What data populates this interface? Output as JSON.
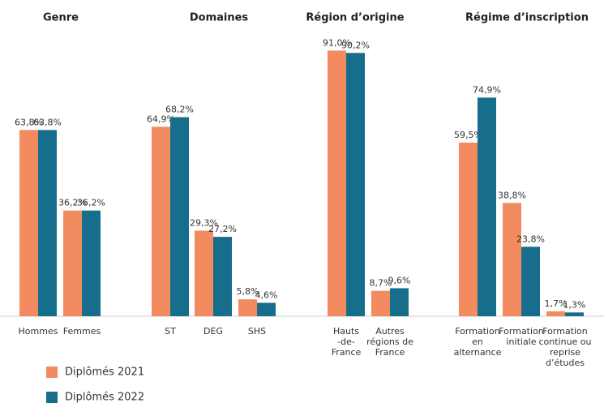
{
  "chart_data": {
    "type": "bar",
    "series": [
      {
        "name": "Diplômés 2021",
        "color": "#f28c60"
      },
      {
        "name": "Diplômés 2022",
        "color": "#166e8c"
      }
    ],
    "panels": [
      {
        "title": "Genre",
        "categories": [
          [
            "Hommes"
          ],
          [
            "Femmes"
          ]
        ],
        "series": [
          {
            "values": [
              63.8,
              36.2
            ],
            "value_labels": [
              "63,8%",
              "36,2%"
            ]
          },
          {
            "values": [
              63.8,
              36.2
            ],
            "value_labels": [
              "63,8%",
              "36,2%"
            ]
          }
        ]
      },
      {
        "title": "Domaines",
        "categories": [
          [
            "ST"
          ],
          [
            "DEG"
          ],
          [
            "SHS"
          ]
        ],
        "series": [
          {
            "values": [
              64.9,
              29.3,
              5.8
            ],
            "value_labels": [
              "64,9%",
              "29,3%",
              "5,8%"
            ]
          },
          {
            "values": [
              68.2,
              27.2,
              4.6
            ],
            "value_labels": [
              "68,2%",
              "27,2%",
              "4,6%"
            ]
          }
        ]
      },
      {
        "title": "Région d’origine",
        "categories": [
          [
            "Hauts",
            "-de-",
            "France"
          ],
          [
            "Autres",
            "régions de",
            "France"
          ]
        ],
        "series": [
          {
            "values": [
              91.0,
              8.7
            ],
            "value_labels": [
              "91,0%",
              "8,7%"
            ]
          },
          {
            "values": [
              90.2,
              9.6
            ],
            "value_labels": [
              "90,2%",
              "9,6%"
            ]
          }
        ]
      },
      {
        "title": "Régime d’inscription",
        "categories": [
          [
            "Formation",
            "en",
            "alternance"
          ],
          [
            "Formation",
            "initiale"
          ],
          [
            "Formation",
            "continue ou",
            "reprise",
            "d’études"
          ]
        ],
        "series": [
          {
            "values": [
              59.5,
              38.8,
              1.7
            ],
            "value_labels": [
              "59,5%",
              "38,8%",
              "1,7%"
            ]
          },
          {
            "values": [
              74.9,
              23.8,
              1.3
            ],
            "value_labels": [
              "74,9%",
              "23,8%",
              "1,3%"
            ]
          }
        ]
      }
    ]
  }
}
